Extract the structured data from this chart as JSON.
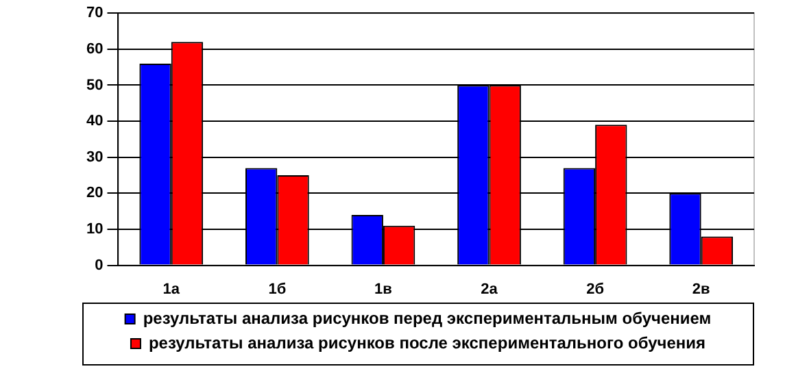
{
  "chart_data": {
    "type": "bar",
    "categories": [
      "1а",
      "1б",
      "1в",
      "2а",
      "2б",
      "2в"
    ],
    "series": [
      {
        "name": "результаты анализа рисунков перед экспериментальным обучением",
        "color": "#0000ff",
        "values": [
          56,
          27,
          14,
          50,
          27,
          20
        ]
      },
      {
        "name": "результаты анализа рисунков после экспериментального обучения",
        "color": "#ff0000",
        "values": [
          62,
          25,
          11,
          50,
          39,
          8
        ]
      }
    ],
    "ylim": [
      0,
      70
    ],
    "yticks": [
      0,
      10,
      20,
      30,
      40,
      50,
      60,
      70
    ],
    "grid": "y",
    "legend": "bottom"
  }
}
